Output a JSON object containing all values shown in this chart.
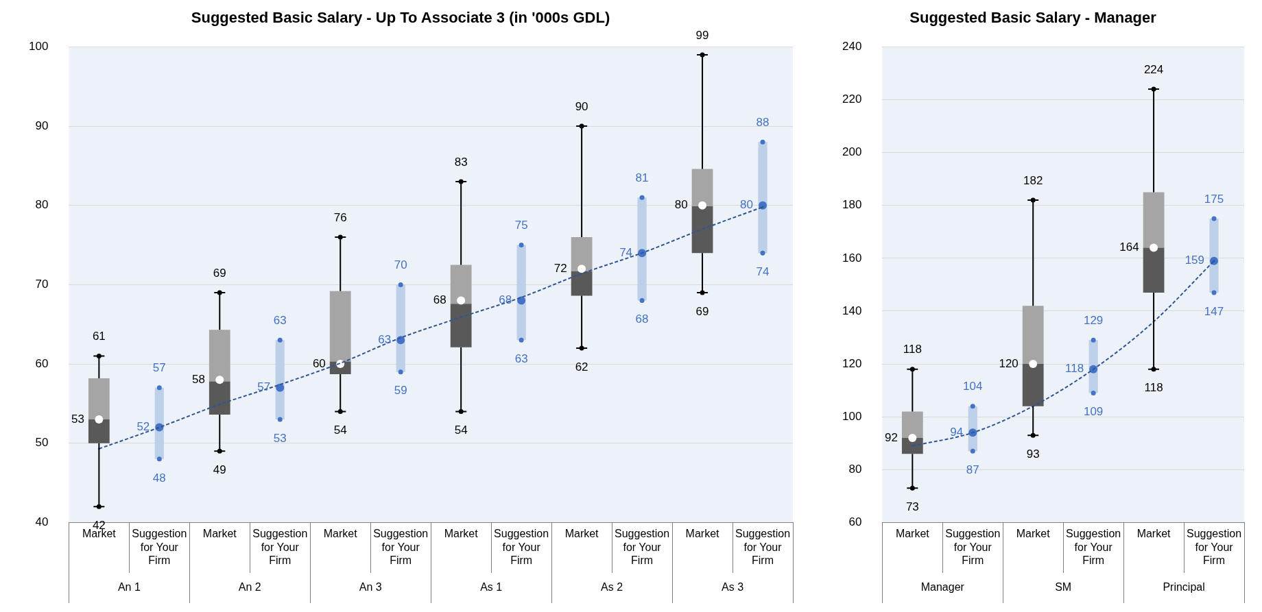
{
  "chart_data": [
    {
      "type": "box",
      "title": "Suggested Basic Salary - Up To Associate 3 (in '000s GDL)",
      "categories": [
        "Market",
        "Suggestion for Your Firm",
        "Market",
        "Suggestion for Your Firm",
        "Market",
        "Suggestion for Your Firm",
        "Market",
        "Suggestion for Your Firm",
        "Market",
        "Suggestion for Your Firm",
        "Market",
        "Suggestion for Your Firm"
      ],
      "annotations": [
        "An 1",
        "An 2",
        "An 3",
        "As 1",
        "As 2",
        "As 3"
      ],
      "ylim": [
        40,
        100
      ],
      "yticks": [
        40,
        50,
        60,
        70,
        80,
        90,
        100
      ],
      "grid": "y",
      "legend": false,
      "data_labels": true,
      "series": [
        {
          "type": "box",
          "color": "#595959",
          "boxes": [
            {
              "low": 42,
              "q1": 50,
              "median": 53,
              "q3": 58.2,
              "high": 61
            },
            null,
            {
              "low": 49,
              "q1": 53.6,
              "median": 57.8,
              "q3": 64.3,
              "high": 69
            },
            null,
            {
              "low": 54,
              "q1": 58.7,
              "median": 60.3,
              "q3": 69.2,
              "high": 76
            },
            null,
            {
              "low": 54,
              "q1": 62.1,
              "median": 67.6,
              "q3": 72.5,
              "high": 83
            },
            null,
            {
              "low": 62,
              "q1": 68.6,
              "median": 71.7,
              "q3": 76,
              "high": 90
            },
            null,
            {
              "low": 69,
              "q1": 74,
              "median": 79.9,
              "q3": 84.6,
              "high": 99
            },
            null
          ]
        },
        {
          "type": "line",
          "color": "#2f5597",
          "line_style": "dashed",
          "marker": "none",
          "values": [
            49.3,
            52,
            54.9,
            57.4,
            60.1,
            63.3,
            65.9,
            68.4,
            71.4,
            74,
            77,
            79.8
          ],
          "value_labels": [
            null,
            null,
            null,
            null,
            null,
            null,
            null,
            null,
            null,
            null,
            null,
            null
          ]
        },
        {
          "type": "bar",
          "color": "#bdd0ea",
          "base": [
            null,
            48,
            null,
            53,
            null,
            59,
            null,
            63,
            null,
            68,
            null,
            74
          ],
          "values": [
            null,
            9,
            null,
            10,
            null,
            11,
            null,
            12,
            null,
            13,
            null,
            14
          ],
          "value_labels": [
            null,
            null,
            null,
            null,
            null,
            null,
            null,
            null,
            null,
            null,
            null,
            null
          ]
        },
        {
          "type": "scatter",
          "color": "#4472c4",
          "marker": "circle",
          "values": [
            null,
            52,
            null,
            57,
            null,
            63,
            null,
            68,
            null,
            74,
            null,
            80
          ]
        },
        {
          "type": "scatter",
          "color": "#ffffff",
          "marker": "circle",
          "values": [
            53,
            null,
            58,
            null,
            60,
            null,
            68,
            null,
            72,
            null,
            80,
            null
          ]
        },
        {
          "type": "scatter",
          "color": "#000000",
          "marker": "circle",
          "values": [
            61,
            null,
            69,
            null,
            76,
            null,
            83,
            null,
            90,
            null,
            99,
            null
          ]
        },
        {
          "type": "scatter",
          "color": "#000000",
          "marker": "circle",
          "values": [
            42,
            null,
            49,
            null,
            54,
            null,
            54,
            null,
            62,
            null,
            69,
            null
          ]
        },
        {
          "type": "scatter",
          "color": "#4472c4",
          "marker": "circle",
          "values": [
            null,
            57,
            null,
            63,
            null,
            70,
            null,
            75,
            null,
            81,
            null,
            88
          ]
        },
        {
          "type": "scatter",
          "color": "#4472c4",
          "marker": "circle",
          "values": [
            null,
            48,
            null,
            53,
            null,
            59,
            null,
            63,
            null,
            68,
            null,
            74
          ]
        }
      ]
    },
    {
      "type": "box",
      "title": "Suggested Basic Salary - Manager",
      "categories": [
        "Market",
        "Suggestion for Your Firm",
        "Market",
        "Suggestion for Your Firm",
        "Market",
        "Suggestion for Your Firm"
      ],
      "annotations": [
        "Manager",
        "SM",
        "Principal"
      ],
      "ylim": [
        60,
        240
      ],
      "yticks": [
        60,
        80,
        100,
        120,
        140,
        160,
        180,
        200,
        220,
        240
      ],
      "grid": "y",
      "legend": false,
      "data_labels": true,
      "series": [
        {
          "type": "box",
          "color": "#595959",
          "boxes": [
            {
              "low": 73,
              "q1": 86,
              "median": 92,
              "q3": 102,
              "high": 118
            },
            null,
            {
              "low": 93,
              "q1": 104,
              "median": 120,
              "q3": 142,
              "high": 182
            },
            null,
            {
              "low": 118,
              "q1": 147,
              "median": 164,
              "q3": 185,
              "high": 224
            },
            null
          ]
        },
        {
          "type": "line",
          "color": "#2f5597",
          "line_style": "dashed",
          "marker": "none",
          "values": [
            89,
            94,
            104,
            118,
            136,
            159
          ],
          "value_labels": [
            null,
            null,
            null,
            null,
            null,
            null
          ]
        },
        {
          "type": "bar",
          "color": "#bdd0ea",
          "base": [
            null,
            87,
            null,
            109,
            null,
            147
          ],
          "values": [
            null,
            17,
            null,
            20,
            null,
            28
          ],
          "value_labels": [
            null,
            null,
            null,
            null,
            null,
            null
          ]
        },
        {
          "type": "scatter",
          "color": "#4472c4",
          "marker": "circle",
          "values": [
            null,
            94,
            null,
            118,
            null,
            159
          ]
        },
        {
          "type": "scatter",
          "color": "#ffffff",
          "marker": "circle",
          "values": [
            92,
            null,
            120,
            null,
            164,
            null
          ]
        },
        {
          "type": "scatter",
          "color": "#000000",
          "marker": "circle",
          "values": [
            118,
            null,
            182,
            null,
            224,
            null
          ]
        },
        {
          "type": "scatter",
          "color": "#000000",
          "marker": "circle",
          "values": [
            73,
            null,
            93,
            null,
            118,
            null
          ]
        },
        {
          "type": "scatter",
          "color": "#4472c4",
          "marker": "circle",
          "values": [
            null,
            104,
            null,
            129,
            null,
            175
          ]
        },
        {
          "type": "scatter",
          "color": "#4472c4",
          "marker": "circle",
          "values": [
            null,
            87,
            null,
            109,
            null,
            147
          ]
        }
      ]
    }
  ]
}
